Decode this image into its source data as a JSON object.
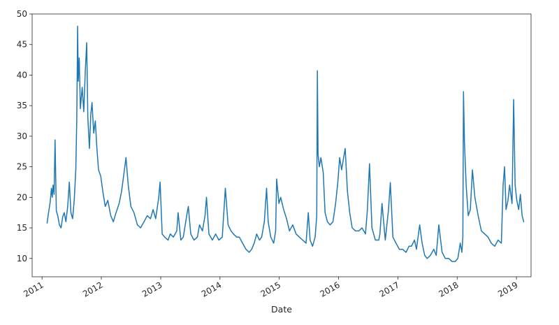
{
  "chart_data": {
    "type": "line",
    "title": "",
    "xlabel": "Date",
    "ylabel": "",
    "ylim": [
      7,
      50
    ],
    "xlim": [
      "2010-11-01",
      "2019-04-01"
    ],
    "y_ticks": [
      10,
      15,
      20,
      25,
      30,
      35,
      40,
      45,
      50
    ],
    "x_ticks": [
      "2011-01-01",
      "2012-01-01",
      "2013-01-01",
      "2014-01-01",
      "2015-01-01",
      "2016-01-01",
      "2017-01-01",
      "2018-01-01",
      "2019-01-01"
    ],
    "x_tick_labels": [
      "2011",
      "2012",
      "2013",
      "2014",
      "2015",
      "2016",
      "2017",
      "2018",
      "2019"
    ],
    "grid": false,
    "legend": "none",
    "line_color": "#1f77b4",
    "series": [
      {
        "x": [
          "2011-02-01",
          "2011-02-10",
          "2011-02-20",
          "2011-02-28",
          "2011-03-05",
          "2011-03-10",
          "2011-03-16",
          "2011-03-22",
          "2011-03-30",
          "2011-04-08",
          "2011-04-18",
          "2011-04-28",
          "2011-05-08",
          "2011-05-18",
          "2011-05-28",
          "2011-06-08",
          "2011-06-18",
          "2011-06-28",
          "2011-07-08",
          "2011-07-18",
          "2011-07-28",
          "2011-08-03",
          "2011-08-08",
          "2011-08-12",
          "2011-08-18",
          "2011-08-25",
          "2011-09-05",
          "2011-09-15",
          "2011-09-25",
          "2011-10-03",
          "2011-10-10",
          "2011-10-20",
          "2011-10-28",
          "2011-11-05",
          "2011-11-15",
          "2011-11-25",
          "2011-12-05",
          "2011-12-15",
          "2011-12-28",
          "2012-01-10",
          "2012-01-25",
          "2012-02-10",
          "2012-02-28",
          "2012-03-15",
          "2012-04-01",
          "2012-04-20",
          "2012-05-05",
          "2012-05-20",
          "2012-06-01",
          "2012-06-15",
          "2012-07-01",
          "2012-07-20",
          "2012-08-10",
          "2012-08-30",
          "2012-09-20",
          "2012-10-10",
          "2012-10-30",
          "2012-11-15",
          "2012-12-01",
          "2012-12-20",
          "2012-12-28",
          "2013-01-10",
          "2013-01-25",
          "2013-02-15",
          "2013-03-01",
          "2013-03-20",
          "2013-04-10",
          "2013-04-18",
          "2013-05-05",
          "2013-05-20",
          "2013-06-10",
          "2013-06-20",
          "2013-07-05",
          "2013-07-25",
          "2013-08-15",
          "2013-08-28",
          "2013-09-15",
          "2013-10-01",
          "2013-10-10",
          "2013-10-25",
          "2013-11-15",
          "2013-12-05",
          "2013-12-25",
          "2014-01-15",
          "2014-02-03",
          "2014-02-20",
          "2014-03-10",
          "2014-03-25",
          "2014-04-14",
          "2014-04-30",
          "2014-05-20",
          "2014-06-10",
          "2014-06-30",
          "2014-07-15",
          "2014-07-31",
          "2014-08-15",
          "2014-09-01",
          "2014-09-15",
          "2014-10-01",
          "2014-10-15",
          "2014-10-25",
          "2014-11-10",
          "2014-11-28",
          "2014-12-10",
          "2014-12-16",
          "2014-12-30",
          "2015-01-10",
          "2015-01-28",
          "2015-02-15",
          "2015-03-05",
          "2015-03-25",
          "2015-04-15",
          "2015-05-05",
          "2015-05-25",
          "2015-06-15",
          "2015-06-29",
          "2015-07-10",
          "2015-07-25",
          "2015-08-10",
          "2015-08-20",
          "2015-08-24",
          "2015-08-28",
          "2015-09-05",
          "2015-09-15",
          "2015-09-29",
          "2015-10-10",
          "2015-10-25",
          "2015-11-10",
          "2015-11-28",
          "2015-12-14",
          "2015-12-28",
          "2016-01-08",
          "2016-01-20",
          "2016-02-11",
          "2016-02-25",
          "2016-03-10",
          "2016-03-25",
          "2016-04-15",
          "2016-05-05",
          "2016-05-25",
          "2016-06-15",
          "2016-06-27",
          "2016-07-10",
          "2016-07-25",
          "2016-08-15",
          "2016-09-05",
          "2016-09-12",
          "2016-09-25",
          "2016-10-15",
          "2016-11-04",
          "2016-11-15",
          "2016-12-01",
          "2016-12-20",
          "2017-01-10",
          "2017-01-30",
          "2017-02-20",
          "2017-03-10",
          "2017-03-25",
          "2017-04-13",
          "2017-04-25",
          "2017-05-15",
          "2017-05-30",
          "2017-06-15",
          "2017-06-30",
          "2017-07-20",
          "2017-08-10",
          "2017-08-25",
          "2017-09-10",
          "2017-09-30",
          "2017-10-20",
          "2017-11-10",
          "2017-11-30",
          "2017-12-20",
          "2018-01-05",
          "2018-01-20",
          "2018-01-30",
          "2018-02-05",
          "2018-02-09",
          "2018-02-15",
          "2018-02-25",
          "2018-03-10",
          "2018-03-23",
          "2018-04-05",
          "2018-04-20",
          "2018-05-10",
          "2018-05-30",
          "2018-06-20",
          "2018-07-10",
          "2018-07-30",
          "2018-08-20",
          "2018-09-10",
          "2018-09-30",
          "2018-10-11",
          "2018-10-20",
          "2018-10-29",
          "2018-11-10",
          "2018-11-20",
          "2018-12-05",
          "2018-12-15",
          "2018-12-24",
          "2019-01-03",
          "2019-01-15",
          "2019-01-25",
          "2019-02-05",
          "2019-02-15"
        ],
        "y": [
          15.8,
          17.5,
          19.2,
          21.5,
          20.0,
          22.0,
          20.5,
          29.4,
          17.8,
          17.0,
          15.5,
          15.0,
          16.8,
          17.5,
          16.0,
          18.5,
          22.5,
          17.5,
          16.5,
          19.5,
          24.5,
          33.0,
          48.0,
          39.0,
          42.8,
          34.5,
          38.0,
          34.0,
          41.0,
          45.3,
          33.0,
          28.0,
          33.5,
          35.5,
          30.5,
          32.5,
          28.0,
          24.5,
          23.5,
          21.0,
          18.5,
          19.5,
          17.0,
          16.0,
          17.5,
          19.0,
          21.0,
          24.0,
          26.5,
          22.0,
          18.5,
          17.5,
          15.5,
          15.0,
          16.0,
          17.0,
          16.5,
          18.0,
          16.5,
          20.0,
          22.5,
          14.0,
          13.5,
          13.0,
          14.0,
          13.5,
          14.5,
          17.5,
          13.0,
          13.5,
          17.0,
          18.5,
          14.0,
          13.0,
          13.5,
          15.5,
          14.5,
          17.0,
          20.0,
          14.0,
          13.0,
          14.0,
          13.0,
          13.5,
          21.5,
          15.5,
          14.5,
          14.0,
          13.5,
          13.5,
          12.5,
          11.5,
          11.0,
          11.5,
          12.5,
          14.0,
          13.0,
          13.5,
          16.0,
          21.5,
          16.0,
          13.5,
          12.5,
          14.5,
          23.0,
          19.0,
          20.0,
          18.0,
          16.5,
          14.5,
          15.5,
          14.0,
          13.5,
          13.0,
          12.5,
          17.5,
          13.0,
          12.0,
          13.5,
          17.0,
          40.7,
          27.0,
          25.0,
          26.5,
          24.0,
          17.5,
          16.0,
          15.5,
          16.0,
          19.0,
          22.5,
          26.5,
          24.5,
          28.0,
          21.0,
          17.5,
          15.0,
          14.5,
          14.5,
          15.0,
          14.0,
          18.0,
          25.5,
          15.0,
          13.0,
          13.0,
          14.0,
          19.0,
          13.0,
          18.0,
          22.4,
          13.5,
          12.5,
          11.5,
          11.5,
          11.0,
          12.0,
          12.0,
          13.0,
          11.5,
          15.5,
          12.5,
          10.5,
          10.0,
          10.5,
          11.5,
          10.5,
          15.5,
          11.0,
          10.0,
          10.0,
          9.5,
          9.5,
          10.0,
          12.5,
          11.0,
          13.5,
          37.3,
          29.0,
          22.0,
          17.0,
          18.0,
          24.5,
          20.0,
          17.0,
          14.5,
          14.0,
          13.5,
          12.5,
          12.0,
          13.0,
          12.5,
          22.0,
          25.0,
          18.0,
          19.5,
          22.0,
          19.0,
          36.0,
          22.0,
          19.5,
          18.0,
          20.5,
          17.0,
          16.0
        ]
      }
    ]
  }
}
